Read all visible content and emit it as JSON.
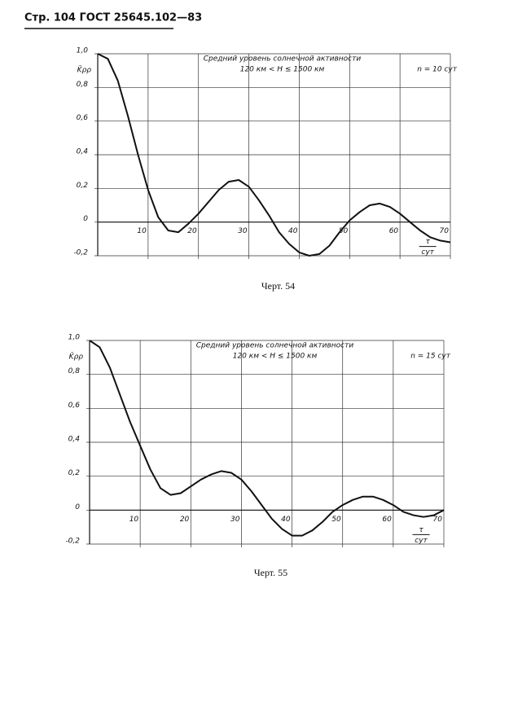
{
  "page_header": "Стр. 104 ГОСТ 25645.102—83",
  "chart_data": [
    {
      "type": "line",
      "title": "Средний уровень солнечной активности",
      "subtitle": "120 км < H ≤ 1500 км",
      "annotations": [
        "n = 10 сут"
      ],
      "ylabel": "K̄ρρ",
      "xlabel": [
        "τ",
        "сут"
      ],
      "caption": "Черт. 54",
      "color": "#111111",
      "grid": true,
      "x": [
        0,
        2,
        4,
        6,
        8,
        10,
        12,
        14,
        16,
        18,
        20,
        22,
        24,
        26,
        28,
        30,
        32,
        34,
        36,
        38,
        40,
        42,
        44,
        46,
        48,
        50,
        52,
        54,
        56,
        58,
        60,
        62,
        64,
        66,
        68,
        70
      ],
      "values": [
        1.0,
        0.97,
        0.84,
        0.63,
        0.4,
        0.19,
        0.03,
        -0.05,
        -0.06,
        -0.01,
        0.05,
        0.12,
        0.19,
        0.24,
        0.25,
        0.21,
        0.13,
        0.04,
        -0.06,
        -0.13,
        -0.18,
        -0.2,
        -0.19,
        -0.14,
        -0.06,
        0.01,
        0.06,
        0.1,
        0.11,
        0.09,
        0.05,
        0.0,
        -0.05,
        -0.09,
        -0.11,
        -0.12
      ],
      "xlim": [
        0,
        70
      ],
      "ylim": [
        -0.2,
        1.0
      ],
      "xticks": [
        10,
        20,
        30,
        40,
        50,
        60,
        70
      ],
      "yticks": [
        {
          "value": 1.0,
          "label": "1,0"
        },
        {
          "value": 0.8,
          "label": "0,8"
        },
        {
          "value": 0.6,
          "label": "0,6"
        },
        {
          "value": 0.4,
          "label": "0,4"
        },
        {
          "value": 0.2,
          "label": "0,2"
        },
        0,
        {
          "value": -0.2,
          "label": "-0,2"
        }
      ]
    },
    {
      "type": "line",
      "title": "Средний уровень солнечной активности",
      "subtitle": "120 км < H ≤ 1500 км",
      "annotations": [
        "n = 15 сут"
      ],
      "ylabel": "K̄ρρ",
      "xlabel": [
        "τ",
        "сут"
      ],
      "caption": "Черт. 55",
      "color": "#111111",
      "grid": true,
      "x": [
        0,
        2,
        4,
        6,
        8,
        10,
        12,
        14,
        16,
        18,
        20,
        22,
        24,
        26,
        28,
        30,
        32,
        34,
        36,
        38,
        40,
        42,
        44,
        46,
        48,
        50,
        52,
        54,
        56,
        58,
        60,
        62,
        64,
        66,
        68,
        70
      ],
      "values": [
        1.0,
        0.96,
        0.84,
        0.68,
        0.52,
        0.38,
        0.24,
        0.13,
        0.09,
        0.1,
        0.14,
        0.18,
        0.21,
        0.23,
        0.22,
        0.18,
        0.11,
        0.03,
        -0.05,
        -0.11,
        -0.15,
        -0.15,
        -0.12,
        -0.07,
        -0.01,
        0.03,
        0.06,
        0.08,
        0.08,
        0.06,
        0.03,
        -0.01,
        -0.03,
        -0.04,
        -0.03,
        0.0
      ],
      "xlim": [
        0,
        70
      ],
      "ylim": [
        -0.2,
        1.0
      ],
      "xticks": [
        10,
        20,
        30,
        40,
        50,
        60,
        70
      ],
      "yticks": [
        {
          "value": 1.0,
          "label": "1,0"
        },
        {
          "value": 0.8,
          "label": "0,8"
        },
        {
          "value": 0.6,
          "label": "0,6"
        },
        {
          "value": 0.4,
          "label": "0,4"
        },
        {
          "value": 0.2,
          "label": "0,2"
        },
        0,
        {
          "value": -0.2,
          "label": "-0,2"
        }
      ]
    }
  ]
}
